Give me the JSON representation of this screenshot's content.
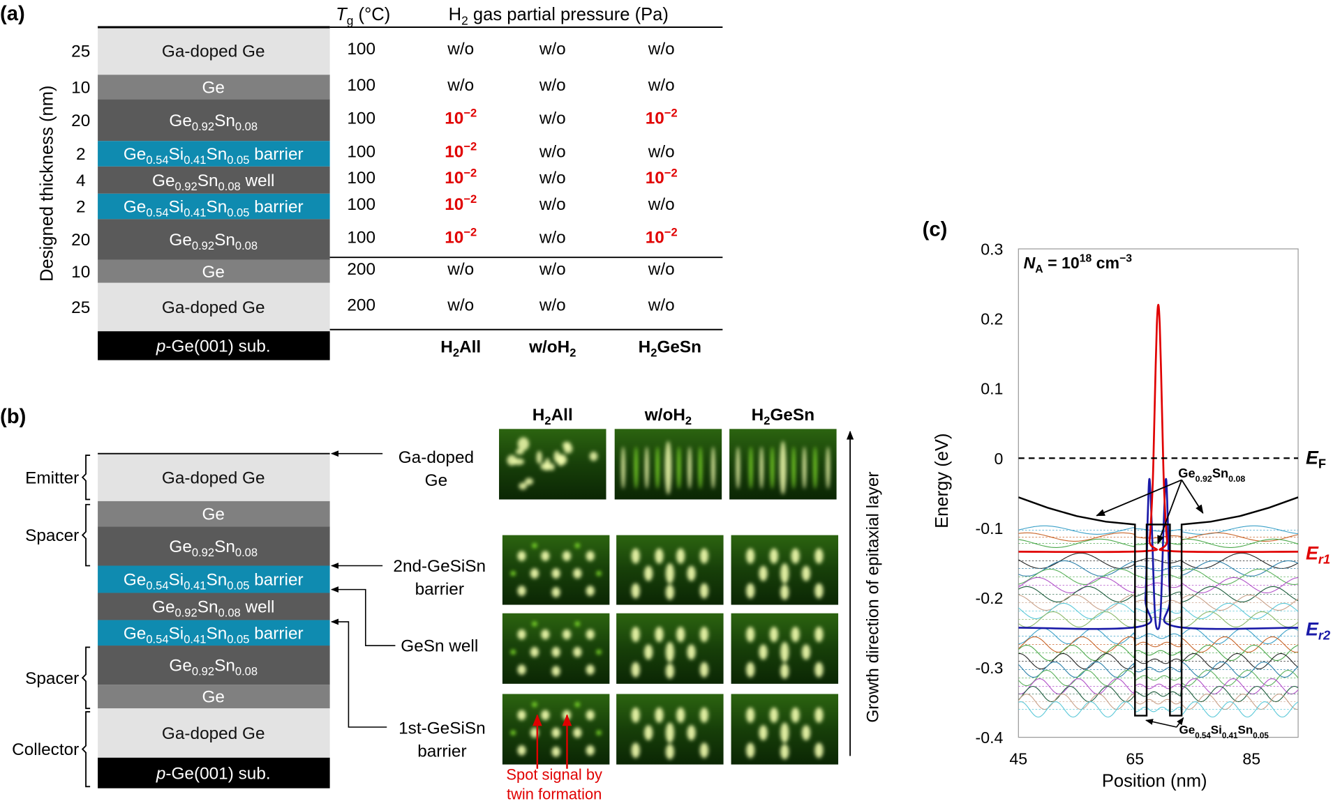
{
  "panel_a": {
    "label": "(a)",
    "y_axis_label": "Designed thickness (nm)",
    "tg_header": [
      {
        "t": "T",
        "i": true
      },
      {
        "t": "g",
        "s": "sub"
      },
      {
        "t": " (°C)"
      }
    ],
    "pressure_header": [
      {
        "t": "H"
      },
      {
        "t": "2",
        "s": "sub"
      },
      {
        "t": " gas partial pressure (Pa)"
      }
    ],
    "layers": [
      {
        "thickness": "25",
        "kind": "doped",
        "label": [
          {
            "t": "Ga-doped Ge"
          }
        ],
        "tg": "100",
        "cells": [
          [
            {
              "t": "w/o"
            }
          ],
          [
            {
              "t": "w/o"
            }
          ],
          [
            {
              "t": "w/o"
            }
          ]
        ]
      },
      {
        "thickness": "10",
        "kind": "ge",
        "label": [
          {
            "t": "Ge"
          }
        ],
        "tg": "100",
        "cells": [
          [
            {
              "t": "w/o"
            }
          ],
          [
            {
              "t": "w/o"
            }
          ],
          [
            {
              "t": "w/o"
            }
          ]
        ]
      },
      {
        "thickness": "20",
        "kind": "gesn",
        "label": [
          {
            "t": "Ge"
          },
          {
            "t": "0.92",
            "s": "sub"
          },
          {
            "t": "Sn"
          },
          {
            "t": "0.08",
            "s": "sub"
          }
        ],
        "tg": "100",
        "cells": [
          [
            {
              "t": "10",
              "r": true
            },
            {
              "t": "−2",
              "s": "sup",
              "r": true
            }
          ],
          [
            {
              "t": "w/o"
            }
          ],
          [
            {
              "t": "10",
              "r": true
            },
            {
              "t": "−2",
              "s": "sup",
              "r": true
            }
          ]
        ]
      },
      {
        "thickness": "2",
        "kind": "barrier",
        "label": [
          {
            "t": "Ge"
          },
          {
            "t": "0.54",
            "s": "sub"
          },
          {
            "t": "Si"
          },
          {
            "t": "0.41",
            "s": "sub"
          },
          {
            "t": "Sn"
          },
          {
            "t": "0.05",
            "s": "sub"
          },
          {
            "t": " barrier"
          }
        ],
        "tg": "100",
        "cells": [
          [
            {
              "t": "10",
              "r": true
            },
            {
              "t": "−2",
              "s": "sup",
              "r": true
            }
          ],
          [
            {
              "t": "w/o"
            }
          ],
          [
            {
              "t": "w/o"
            }
          ]
        ]
      },
      {
        "thickness": "4",
        "kind": "gesn",
        "label": [
          {
            "t": "Ge"
          },
          {
            "t": "0.92",
            "s": "sub"
          },
          {
            "t": "Sn"
          },
          {
            "t": "0.08",
            "s": "sub"
          },
          {
            "t": " well"
          }
        ],
        "tg": "100",
        "cells": [
          [
            {
              "t": "10",
              "r": true
            },
            {
              "t": "−2",
              "s": "sup",
              "r": true
            }
          ],
          [
            {
              "t": "w/o"
            }
          ],
          [
            {
              "t": "10",
              "r": true
            },
            {
              "t": "−2",
              "s": "sup",
              "r": true
            }
          ]
        ]
      },
      {
        "thickness": "2",
        "kind": "barrier",
        "label": [
          {
            "t": "Ge"
          },
          {
            "t": "0.54",
            "s": "sub"
          },
          {
            "t": "Si"
          },
          {
            "t": "0.41",
            "s": "sub"
          },
          {
            "t": "Sn"
          },
          {
            "t": "0.05",
            "s": "sub"
          },
          {
            "t": " barrier"
          }
        ],
        "tg": "100",
        "cells": [
          [
            {
              "t": "10",
              "r": true
            },
            {
              "t": "−2",
              "s": "sup",
              "r": true
            }
          ],
          [
            {
              "t": "w/o"
            }
          ],
          [
            {
              "t": "w/o"
            }
          ]
        ]
      },
      {
        "thickness": "20",
        "kind": "gesn",
        "label": [
          {
            "t": "Ge"
          },
          {
            "t": "0.92",
            "s": "sub"
          },
          {
            "t": "Sn"
          },
          {
            "t": "0.08",
            "s": "sub"
          }
        ],
        "tg": "100",
        "cells": [
          [
            {
              "t": "10",
              "r": true
            },
            {
              "t": "−2",
              "s": "sup",
              "r": true
            }
          ],
          [
            {
              "t": "w/o"
            }
          ],
          [
            {
              "t": "10",
              "r": true
            },
            {
              "t": "−2",
              "s": "sup",
              "r": true
            }
          ]
        ]
      },
      {
        "thickness": "10",
        "kind": "ge",
        "label": [
          {
            "t": "Ge"
          }
        ],
        "tg": "200",
        "cells": [
          [
            {
              "t": "w/o"
            }
          ],
          [
            {
              "t": "w/o"
            }
          ],
          [
            {
              "t": "w/o"
            }
          ]
        ]
      },
      {
        "thickness": "25",
        "kind": "doped",
        "label": [
          {
            "t": "Ga-doped Ge"
          }
        ],
        "tg": "200",
        "cells": [
          [
            {
              "t": "w/o"
            }
          ],
          [
            {
              "t": "w/o"
            }
          ],
          [
            {
              "t": "w/o"
            }
          ]
        ]
      }
    ],
    "substrate": [
      {
        "t": "p",
        "i": true
      },
      {
        "t": "-Ge(001) sub."
      }
    ],
    "sample_names": [
      [
        {
          "t": "H"
        },
        {
          "t": "2",
          "s": "sub"
        },
        {
          "t": "All"
        }
      ],
      [
        {
          "t": "w/oH"
        },
        {
          "t": "2",
          "s": "sub"
        }
      ],
      [
        {
          "t": "H"
        },
        {
          "t": "2",
          "s": "sub"
        },
        {
          "t": "GeSn"
        }
      ]
    ]
  },
  "layer_colors": {
    "doped": "#e3e3e3",
    "ge": "#808080",
    "gesn": "#5a5a5a",
    "barrier": "#0f8bb0",
    "substrate": "#000000",
    "highlight": "#e00000"
  },
  "panel_b": {
    "label": "(b)",
    "layers": [
      {
        "kind": "doped",
        "label": [
          {
            "t": "Ga-doped Ge"
          }
        ]
      },
      {
        "kind": "ge",
        "label": [
          {
            "t": "Ge"
          }
        ]
      },
      {
        "kind": "gesn",
        "label": [
          {
            "t": "Ge"
          },
          {
            "t": "0.92",
            "s": "sub"
          },
          {
            "t": "Sn"
          },
          {
            "t": "0.08",
            "s": "sub"
          }
        ]
      },
      {
        "kind": "barrier",
        "label": [
          {
            "t": "Ge"
          },
          {
            "t": "0.54",
            "s": "sub"
          },
          {
            "t": "Si"
          },
          {
            "t": "0.41",
            "s": "sub"
          },
          {
            "t": "Sn"
          },
          {
            "t": "0.05",
            "s": "sub"
          },
          {
            "t": " barrier"
          }
        ]
      },
      {
        "kind": "gesn",
        "label": [
          {
            "t": "Ge"
          },
          {
            "t": "0.92",
            "s": "sub"
          },
          {
            "t": "Sn"
          },
          {
            "t": "0.08",
            "s": "sub"
          },
          {
            "t": " well"
          }
        ]
      },
      {
        "kind": "barrier",
        "label": [
          {
            "t": "Ge"
          },
          {
            "t": "0.54",
            "s": "sub"
          },
          {
            "t": "Si"
          },
          {
            "t": "0.41",
            "s": "sub"
          },
          {
            "t": "Sn"
          },
          {
            "t": "0.05",
            "s": "sub"
          },
          {
            "t": " barrier"
          }
        ]
      },
      {
        "kind": "gesn",
        "label": [
          {
            "t": "Ge"
          },
          {
            "t": "0.92",
            "s": "sub"
          },
          {
            "t": "Sn"
          },
          {
            "t": "0.08",
            "s": "sub"
          }
        ]
      },
      {
        "kind": "ge",
        "label": [
          {
            "t": "Ge"
          }
        ]
      },
      {
        "kind": "doped",
        "label": [
          {
            "t": "Ga-doped Ge"
          }
        ]
      }
    ],
    "substrate": [
      {
        "t": "p",
        "i": true
      },
      {
        "t": "-Ge(001) sub."
      }
    ],
    "regions": [
      "Emitter",
      "Spacer",
      "Spacer",
      "Collector"
    ],
    "callouts": [
      [
        "Ga-doped",
        "Ge"
      ],
      [
        "2nd-GeSiSn",
        "barrier"
      ],
      [
        "GeSn well"
      ],
      [
        "1st-GeSiSn",
        "barrier"
      ]
    ],
    "growth_direction": "Growth direction of epitaxial layer",
    "twin_note": [
      "Spot signal by",
      "twin formation"
    ],
    "rheed_columns": [
      [
        {
          "t": "H"
        },
        {
          "t": "2",
          "s": "sub"
        },
        {
          "t": "All"
        }
      ],
      [
        {
          "t": "w/oH"
        },
        {
          "t": "2",
          "s": "sub"
        }
      ],
      [
        {
          "t": "H"
        },
        {
          "t": "2",
          "s": "sub"
        },
        {
          "t": "GeSn"
        }
      ]
    ],
    "rheed_patterns": [
      [
        "spotty",
        "streaky",
        "streaky"
      ],
      [
        "twin",
        "spot",
        "spot"
      ],
      [
        "twin",
        "spot",
        "spot"
      ],
      [
        "twin",
        "spot",
        "spot"
      ]
    ],
    "rheed_colors": {
      "background": "#123a08",
      "spot": "#f4ffb0",
      "glow": "#7ed82a"
    }
  },
  "chart_data": {
    "type": "line",
    "panel_label": "(c)",
    "xlabel": "Position (nm)",
    "ylabel": "Energy (eV)",
    "xlim": [
      45,
      93
    ],
    "ylim": [
      -0.4,
      0.3
    ],
    "xticks": [
      45,
      65,
      85
    ],
    "xtick_labels": [
      "45",
      "65",
      "85"
    ],
    "yticks": [
      0.3,
      0.2,
      0.1,
      0,
      -0.1,
      -0.2,
      -0.3,
      -0.4
    ],
    "ytick_labels": [
      "0.3",
      "0.2",
      "0.1",
      "0",
      "-0.1",
      "-0.2",
      "-0.3",
      "-0.4"
    ],
    "annotation_doping": [
      {
        "t": "N",
        "i": true
      },
      {
        "t": "A",
        "s": "sub"
      },
      {
        "t": " = 10"
      },
      {
        "t": "18",
        "s": "sup"
      },
      {
        "t": " cm"
      },
      {
        "t": "−3",
        "s": "sup"
      }
    ],
    "annotation_well": [
      {
        "t": "Ge"
      },
      {
        "t": "0.92",
        "s": "sub"
      },
      {
        "t": "Sn"
      },
      {
        "t": "0.08",
        "s": "sub"
      }
    ],
    "annotation_barrier": [
      {
        "t": "Ge"
      },
      {
        "t": "0.54",
        "s": "sub"
      },
      {
        "t": "Si"
      },
      {
        "t": "0.41",
        "s": "sub"
      },
      {
        "t": "Sn"
      },
      {
        "t": "0.05",
        "s": "sub"
      }
    ],
    "fermi_level": {
      "energy": 0,
      "label": [
        {
          "t": "E",
          "i": true
        },
        {
          "t": "F",
          "s": "sub"
        }
      ]
    },
    "resonance_levels": [
      {
        "energy": -0.134,
        "color": "#e00000",
        "label": [
          {
            "t": "E",
            "i": true
          },
          {
            "t": "r1",
            "s": "sub",
            "i": true
          }
        ]
      },
      {
        "energy": -0.243,
        "color": "#1a1aa8",
        "label": [
          {
            "t": "E",
            "i": true
          },
          {
            "t": "r2",
            "s": "sub",
            "i": true
          }
        ]
      }
    ],
    "band_edge": [
      [
        45,
        -0.056
      ],
      [
        50,
        -0.071
      ],
      [
        55,
        -0.083
      ],
      [
        60,
        -0.091
      ],
      [
        65,
        -0.095
      ],
      [
        65,
        -0.369
      ],
      [
        67,
        -0.369
      ],
      [
        67,
        -0.095
      ],
      [
        71,
        -0.095
      ],
      [
        71,
        -0.369
      ],
      [
        73,
        -0.369
      ],
      [
        73,
        -0.095
      ],
      [
        78,
        -0.091
      ],
      [
        83,
        -0.083
      ],
      [
        88,
        -0.071
      ],
      [
        93,
        -0.056
      ]
    ],
    "wavefunction_r1": [
      [
        45,
        -0.134
      ],
      [
        67,
        -0.133
      ],
      [
        67.5,
        -0.118
      ],
      [
        68,
        -0.046
      ],
      [
        68.25,
        0.028
      ],
      [
        68.5,
        0.116
      ],
      [
        68.75,
        0.191
      ],
      [
        69,
        0.22
      ],
      [
        69.25,
        0.191
      ],
      [
        69.5,
        0.116
      ],
      [
        69.75,
        0.028
      ],
      [
        70,
        -0.046
      ],
      [
        70.5,
        -0.118
      ],
      [
        71,
        -0.133
      ],
      [
        93,
        -0.134
      ]
    ],
    "wavefunction_r2": [
      [
        45,
        -0.243
      ],
      [
        66,
        -0.241
      ],
      [
        66.8,
        -0.2
      ],
      [
        67.2,
        -0.08
      ],
      [
        67.5,
        -0.03
      ],
      [
        67.9,
        -0.1
      ],
      [
        68.4,
        -0.22
      ],
      [
        68.9,
        -0.245
      ],
      [
        69.4,
        -0.22
      ],
      [
        69.9,
        -0.1
      ],
      [
        70.3,
        -0.03
      ],
      [
        70.6,
        -0.08
      ],
      [
        71,
        -0.2
      ],
      [
        71.8,
        -0.241
      ],
      [
        93,
        -0.243
      ]
    ],
    "other_levels": [
      -0.103,
      -0.113,
      -0.122,
      -0.147,
      -0.158,
      -0.17,
      -0.182,
      -0.195,
      -0.207,
      -0.219,
      -0.231,
      -0.255,
      -0.267,
      -0.279,
      -0.291,
      -0.303,
      -0.315,
      -0.327,
      -0.338,
      -0.349,
      -0.36
    ],
    "level_colors": [
      "#3aa0c8",
      "#c86428",
      "#4aa84a",
      "#222222",
      "#2a7fa8",
      "#5ab05a",
      "#b050c8",
      "#1a5a3a",
      "#c8a088",
      "#5ac8d8",
      "#8ab86a"
    ]
  }
}
